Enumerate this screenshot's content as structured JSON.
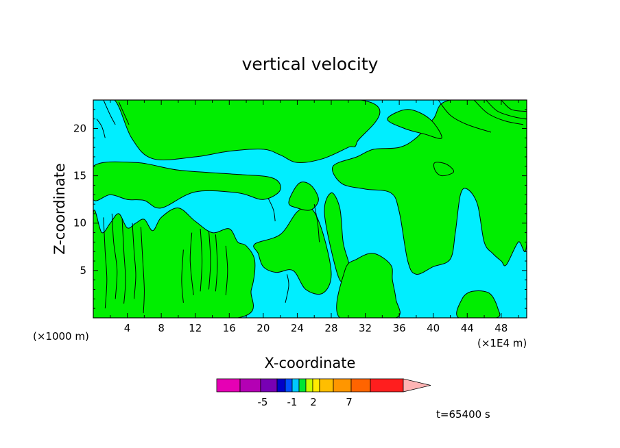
{
  "chart_data": {
    "type": "heatmap",
    "title": "vertical velocity",
    "xlabel": "X-coordinate",
    "ylabel": "Z-coordinate",
    "x_unit_left": "(×1000 m)",
    "x_unit_right": "(×1E4 m)",
    "xlim": [
      0,
      51
    ],
    "ylim": [
      0,
      23
    ],
    "x_ticks": [
      4,
      8,
      12,
      16,
      20,
      24,
      28,
      32,
      36,
      40,
      44,
      48
    ],
    "x_tick_labels": [
      "4",
      "8",
      "12",
      "16",
      "20",
      "24",
      "28",
      "32",
      "36",
      "40",
      "44",
      "48"
    ],
    "y_ticks": [
      5,
      10,
      15,
      20
    ],
    "y_tick_labels": [
      "5",
      "10",
      "15",
      "20"
    ],
    "time_label": "t=65400 s",
    "field_colors": {
      "positive": "#00ee00",
      "negative": "#00eeff"
    },
    "colorbar": {
      "colors": [
        "#e600b4",
        "#b400b4",
        "#7800b4",
        "#0000c8",
        "#0050ff",
        "#00c8ff",
        "#00e632",
        "#c8ff00",
        "#ffeb00",
        "#ffbe00",
        "#ff9600",
        "#ff6400",
        "#ff1e1e",
        "#ff8080",
        "#ffb4b4"
      ],
      "labels": [
        "-5",
        "-1",
        "2",
        "7"
      ],
      "label_values": [
        -5,
        -1,
        2,
        7
      ]
    },
    "regions_positive": [
      [
        [
          0,
          23
        ],
        [
          2.5,
          23
        ],
        [
          4.5,
          19
        ],
        [
          7,
          16.8
        ],
        [
          12,
          17
        ],
        [
          16,
          17.6
        ],
        [
          20,
          17.8
        ],
        [
          22,
          17.2
        ],
        [
          24,
          16.4
        ],
        [
          27,
          16.8
        ],
        [
          30,
          18
        ],
        [
          31,
          18.5
        ],
        [
          31.5,
          23
        ],
        [
          0,
          23
        ]
      ],
      [
        [
          0,
          16
        ],
        [
          5,
          16.4
        ],
        [
          10,
          15.6
        ],
        [
          16,
          15.2
        ],
        [
          21,
          14.8
        ],
        [
          22,
          13.5
        ],
        [
          20,
          12.5
        ],
        [
          17,
          13.2
        ],
        [
          12,
          13.3
        ],
        [
          8,
          11.6
        ],
        [
          6,
          12.4
        ],
        [
          4,
          12.5
        ],
        [
          2,
          13
        ],
        [
          0,
          12.5
        ]
      ],
      [
        [
          0,
          11
        ],
        [
          1,
          9
        ],
        [
          2,
          10
        ],
        [
          3,
          11
        ],
        [
          4,
          9.5
        ],
        [
          5,
          10
        ],
        [
          6,
          10.4
        ],
        [
          7,
          9.2
        ],
        [
          8,
          10.6
        ],
        [
          10,
          11.6
        ],
        [
          12,
          10.2
        ],
        [
          14,
          9
        ],
        [
          16,
          9.4
        ],
        [
          17,
          8
        ],
        [
          18,
          7.6
        ],
        [
          19,
          6
        ],
        [
          18.6,
          3
        ],
        [
          17,
          0
        ],
        [
          0,
          0
        ]
      ],
      [
        [
          19,
          7.8
        ],
        [
          22,
          8.8
        ],
        [
          24,
          11.2
        ],
        [
          25.6,
          11.6
        ],
        [
          27,
          9
        ],
        [
          28,
          4.6
        ],
        [
          27,
          2.6
        ],
        [
          25,
          3
        ],
        [
          23.5,
          5
        ],
        [
          21.5,
          4.8
        ],
        [
          20,
          5.4
        ],
        [
          19.4,
          6.8
        ]
      ],
      [
        [
          23,
          12.2
        ],
        [
          24.2,
          14.2
        ],
        [
          25.6,
          14
        ],
        [
          26.5,
          12.5
        ],
        [
          25.6,
          11.4
        ],
        [
          24,
          11.6
        ]
      ],
      [
        [
          27.2,
          11
        ],
        [
          28,
          13.2
        ],
        [
          29,
          11.6
        ],
        [
          29.4,
          8
        ],
        [
          30,
          6
        ],
        [
          30.5,
          4
        ],
        [
          29.5,
          3.6
        ],
        [
          28.6,
          5
        ]
      ],
      [
        [
          29,
          0
        ],
        [
          29.6,
          5
        ],
        [
          31,
          6.2
        ],
        [
          33,
          6.8
        ],
        [
          35,
          5.6
        ],
        [
          35.2,
          4
        ],
        [
          35.6,
          2
        ],
        [
          35.6,
          0
        ]
      ],
      [
        [
          28.2,
          16
        ],
        [
          29.2,
          14.2
        ],
        [
          32,
          13.6
        ],
        [
          35,
          13.2
        ],
        [
          36,
          11.2
        ],
        [
          37,
          6
        ],
        [
          38,
          4.6
        ],
        [
          40,
          5.4
        ],
        [
          42,
          6.2
        ],
        [
          42.6,
          9
        ],
        [
          43.2,
          13
        ],
        [
          44,
          13.6
        ],
        [
          45.2,
          12
        ],
        [
          46,
          8
        ],
        [
          47,
          6.8
        ],
        [
          48,
          6
        ],
        [
          48.6,
          5.6
        ],
        [
          50,
          8
        ],
        [
          51,
          8
        ],
        [
          51,
          23
        ],
        [
          42,
          23
        ],
        [
          40,
          21
        ],
        [
          38,
          19
        ],
        [
          36,
          18
        ],
        [
          33,
          17.8
        ],
        [
          31,
          17
        ]
      ],
      [
        [
          40.2,
          16.4
        ],
        [
          41.6,
          16.2
        ],
        [
          42.4,
          15.4
        ],
        [
          41,
          15
        ],
        [
          40.2,
          15.6
        ]
      ],
      [
        [
          43,
          0
        ],
        [
          43.4,
          2
        ],
        [
          44.6,
          2.8
        ],
        [
          46.6,
          2.6
        ],
        [
          47.6,
          1
        ],
        [
          47.4,
          0
        ]
      ],
      [
        [
          34.6,
          21
        ],
        [
          36.6,
          20
        ],
        [
          39,
          19.4
        ],
        [
          41,
          19
        ],
        [
          39.6,
          21
        ],
        [
          37,
          22
        ]
      ]
    ],
    "contour_lines": [
      [
        [
          0.4,
          21
        ],
        [
          1,
          20.2
        ],
        [
          1.4,
          19
        ]
      ],
      [
        [
          1.2,
          23
        ],
        [
          2,
          21.4
        ],
        [
          2.6,
          20.4
        ]
      ],
      [
        [
          3,
          22.8
        ],
        [
          3.6,
          21.6
        ],
        [
          4.2,
          20.4
        ]
      ],
      [
        [
          40.6,
          23
        ],
        [
          42,
          21.4
        ],
        [
          44,
          20.4
        ],
        [
          46.8,
          19.6
        ]
      ],
      [
        [
          44.8,
          23
        ],
        [
          46.4,
          21.6
        ],
        [
          48.4,
          20.8
        ],
        [
          50.6,
          20.4
        ]
      ],
      [
        [
          46.2,
          23
        ],
        [
          47.6,
          21.8
        ],
        [
          49.6,
          21.2
        ],
        [
          51,
          21
        ]
      ],
      [
        [
          48,
          23
        ],
        [
          49.2,
          22
        ],
        [
          51,
          21.8
        ]
      ],
      [
        [
          1.2,
          10.6
        ],
        [
          1.4,
          7
        ],
        [
          1.6,
          4
        ],
        [
          1.4,
          1
        ]
      ],
      [
        [
          2.2,
          11
        ],
        [
          2.4,
          8
        ],
        [
          2.8,
          5
        ],
        [
          2.6,
          2
        ]
      ],
      [
        [
          3.4,
          10.4
        ],
        [
          3.6,
          7
        ],
        [
          3.8,
          4
        ],
        [
          3.6,
          1.5
        ]
      ],
      [
        [
          4.6,
          10
        ],
        [
          4.8,
          7
        ],
        [
          5,
          4.5
        ],
        [
          4.8,
          2
        ]
      ],
      [
        [
          5.6,
          9.6
        ],
        [
          5.8,
          6.4
        ],
        [
          6,
          3
        ],
        [
          5.9,
          0.5
        ]
      ],
      [
        [
          10.6,
          7.2
        ],
        [
          10.4,
          4
        ],
        [
          10.6,
          1.6
        ]
      ],
      [
        [
          11.6,
          9
        ],
        [
          11.4,
          6
        ],
        [
          11.8,
          2.4
        ]
      ],
      [
        [
          12.6,
          9.4
        ],
        [
          12.8,
          6
        ],
        [
          12.6,
          2.8
        ]
      ],
      [
        [
          13.6,
          9.2
        ],
        [
          13.8,
          6
        ],
        [
          13.6,
          3
        ]
      ],
      [
        [
          14.4,
          8.8
        ],
        [
          14.6,
          5.6
        ],
        [
          14.4,
          2.8
        ]
      ],
      [
        [
          15.6,
          7.6
        ],
        [
          15.8,
          5
        ],
        [
          15.6,
          2.4
        ]
      ],
      [
        [
          20.6,
          12.6
        ],
        [
          21.2,
          11.4
        ],
        [
          21.4,
          10.2
        ]
      ],
      [
        [
          26,
          12
        ],
        [
          26.4,
          10
        ],
        [
          26.6,
          8
        ]
      ],
      [
        [
          22.6,
          1.6
        ],
        [
          23,
          3.4
        ],
        [
          22.8,
          4.6
        ]
      ]
    ]
  }
}
